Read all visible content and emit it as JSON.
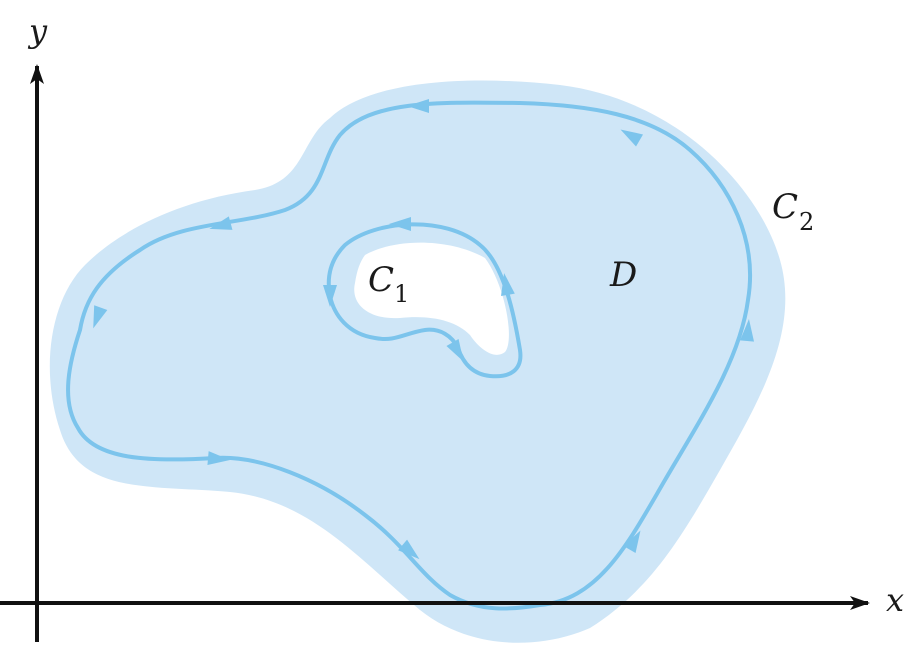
{
  "colors": {
    "region_fill": "#cfe6f7",
    "curve_stroke": "#7cc4ec",
    "hole_fill": "#ffffff",
    "axis": "#111111",
    "text": "#1a1a1a"
  },
  "axes": {
    "x_label": "x",
    "y_label": "y"
  },
  "labels": {
    "region": "D",
    "inner_curve_main": "C",
    "inner_curve_sub": "1",
    "outer_curve_main": "C",
    "outer_curve_sub": "2"
  }
}
